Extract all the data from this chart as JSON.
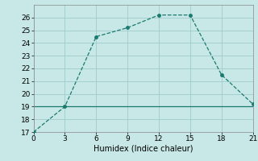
{
  "x": [
    0,
    3,
    6,
    9,
    12,
    15,
    18,
    21
  ],
  "y_main": [
    17,
    19,
    24.5,
    25.2,
    26.2,
    26.2,
    21.5,
    19.2
  ],
  "y_flat": [
    19,
    19,
    19,
    19,
    19,
    19,
    19,
    19
  ],
  "xlabel": "Humidex (Indice chaleur)",
  "xlim": [
    0,
    21
  ],
  "ylim": [
    17,
    27
  ],
  "xticks": [
    0,
    3,
    6,
    9,
    12,
    15,
    18,
    21
  ],
  "yticks": [
    17,
    18,
    19,
    20,
    21,
    22,
    23,
    24,
    25,
    26
  ],
  "line_color": "#1a7a6e",
  "flat_color": "#1a7a6e",
  "bg_color": "#c8e8e8",
  "grid_color": "#a0cccc"
}
